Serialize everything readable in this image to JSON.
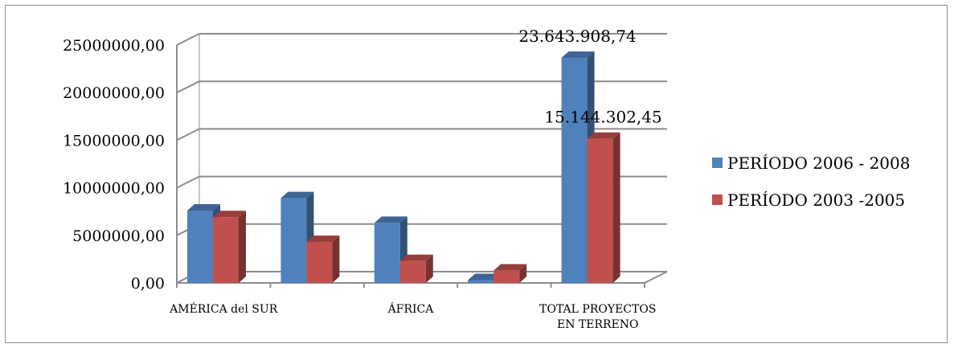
{
  "chart_data": {
    "type": "bar",
    "three_d": true,
    "categories": [
      "AMÉRICA del SUR",
      "",
      "ÁFRICA",
      "",
      "TOTAL PROYECTOS EN TERRENO"
    ],
    "category_labels": [
      {
        "index": 0,
        "lines": [
          "AMÉRICA del SUR"
        ]
      },
      {
        "index": 2,
        "lines": [
          "ÁFRICA"
        ]
      },
      {
        "index": 4,
        "lines": [
          "TOTAL PROYECTOS",
          "EN TERRENO"
        ]
      }
    ],
    "series": [
      {
        "name": "PERÍODO 2006 - 2008",
        "color": "#4F81BD",
        "values": [
          7600000,
          8900000,
          6300000,
          300000,
          23643908.74
        ]
      },
      {
        "name": "PERÍODO 2003 -2005",
        "color": "#C0504D",
        "values": [
          6900000,
          4300000,
          2300000,
          1300000,
          15144302.45
        ]
      }
    ],
    "yticks": [
      "0,00",
      "5000000,00",
      "10000000,00",
      "15000000,00",
      "20000000,00",
      "25000000,00"
    ],
    "ylim": [
      0,
      25000000
    ],
    "data_labels": [
      {
        "series": 0,
        "index": 4,
        "text": "23.643.908,74"
      },
      {
        "series": 1,
        "index": 4,
        "text": "15.144.302,45"
      }
    ],
    "grid": true,
    "legend_position": "right"
  }
}
